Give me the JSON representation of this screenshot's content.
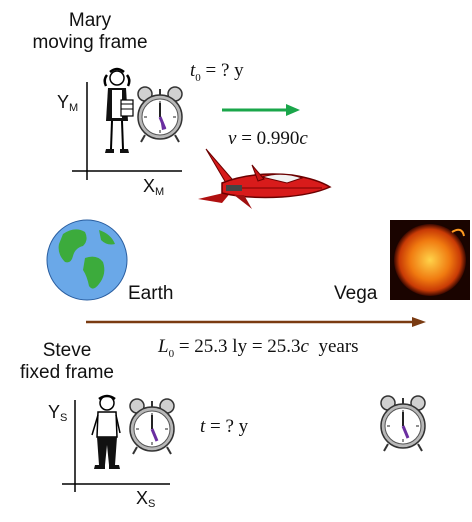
{
  "mary": {
    "name": "Mary",
    "frame": "moving frame",
    "time_eq": {
      "symbol": "t",
      "sub": "0",
      "rest": " = ? y"
    },
    "velocity_eq": {
      "symbol": "v",
      "rest": " = 0.990",
      "c": "c"
    },
    "x_axis": {
      "main": "X",
      "sub": "M"
    },
    "y_axis": {
      "main": "Y",
      "sub": "M"
    }
  },
  "steve": {
    "name": "Steve",
    "frame": "fixed frame",
    "time_eq": {
      "symbol": "t",
      "rest": " = ? y"
    },
    "x_axis": {
      "main": "X",
      "sub": "S"
    },
    "y_axis": {
      "main": "Y",
      "sub": "S"
    }
  },
  "earth": {
    "label": "Earth"
  },
  "vega": {
    "label": "Vega"
  },
  "distance_eq": {
    "symbol": "L",
    "sub": "0",
    "rest": " = 25.3 ly = 25.3",
    "c": "c",
    "tail": "  years"
  },
  "colors": {
    "velocity_arrow": "#1aa64a",
    "distance_arrow": "#7a3b12",
    "rocket": "#d81b1b",
    "clock_hand": "#6a2ea0"
  },
  "icons": [
    "earth-globe-icon",
    "sun-star-icon",
    "rocket-icon",
    "alarm-clock-icon",
    "person-icon"
  ]
}
